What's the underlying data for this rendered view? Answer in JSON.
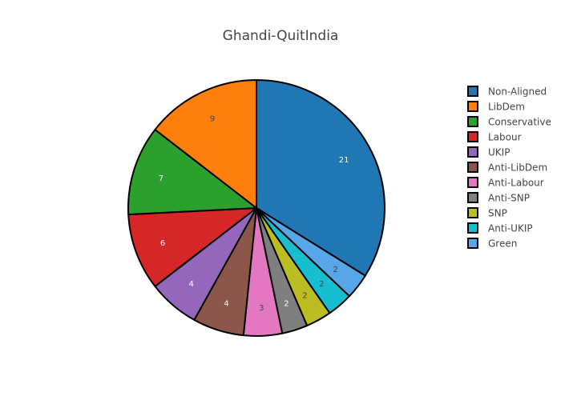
{
  "chart_data": {
    "type": "pie",
    "title": "Ghandi-QuitIndia",
    "labels": [
      "Non-Aligned",
      "LibDem",
      "Conservative",
      "Labour",
      "UKIP",
      "Anti-LibDem",
      "Anti-Labour",
      "Anti-SNP",
      "SNP",
      "Anti-UKIP",
      "Green"
    ],
    "values": [
      21,
      9,
      7,
      6,
      4,
      4,
      3,
      2,
      2,
      2,
      2
    ],
    "colors": [
      "#1f77b4",
      "#ff7f0e",
      "#2ca02c",
      "#d62728",
      "#9467bd",
      "#8c564b",
      "#e377c2",
      "#7f7f7f",
      "#bcbd22",
      "#17becf",
      "#56a6e8"
    ],
    "text_colors": [
      "#ffffff",
      "#444444",
      "#ffffff",
      "#ffffff",
      "#ffffff",
      "#ffffff",
      "#444444",
      "#ffffff",
      "#444444",
      "#444444",
      "#444444"
    ],
    "slice_order": [
      0,
      10,
      9,
      8,
      7,
      6,
      5,
      4,
      3,
      2,
      1
    ],
    "direction": "clockwise",
    "legend_position": "right"
  }
}
